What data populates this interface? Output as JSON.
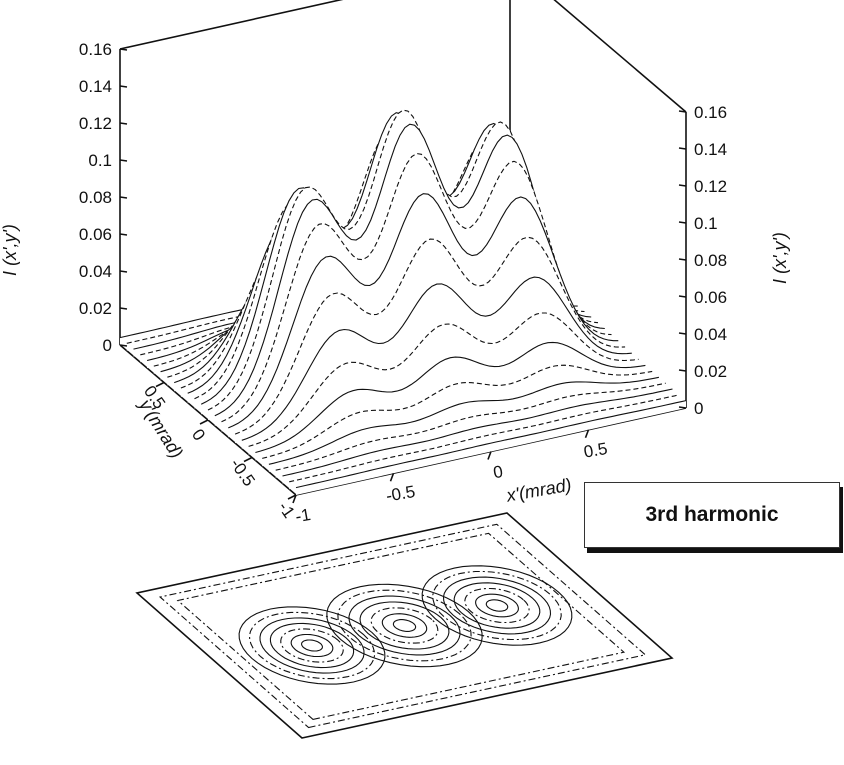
{
  "chart_data": {
    "type": "surface3d",
    "title": "",
    "subtitle": "3rd harmonic",
    "x_label": "x'(mrad)",
    "y_label": "y'(mrad)",
    "z_label": "I (x',y')",
    "x_range": [
      -1,
      1
    ],
    "y_range": [
      -1,
      1
    ],
    "z_range": [
      0,
      0.16
    ],
    "x_ticks": [
      "-1",
      "-0.5",
      "0",
      "0.5"
    ],
    "y_ticks": [
      "-1",
      "-0.5",
      "0",
      "0.5"
    ],
    "z_ticks": [
      "0",
      "0.02",
      "0.04",
      "0.06",
      "0.08",
      "0.1",
      "0.12",
      "0.14",
      "0.16"
    ],
    "peaks": [
      {
        "x": -0.5,
        "y": 0,
        "value": 0.108
      },
      {
        "x": 0,
        "y": 0,
        "value": 0.137
      },
      {
        "x": 0.5,
        "y": 0,
        "value": 0.12
      }
    ],
    "contour_plot": "contour map of I (x',y') drawn below the surface",
    "grid": false,
    "legend": "none"
  }
}
